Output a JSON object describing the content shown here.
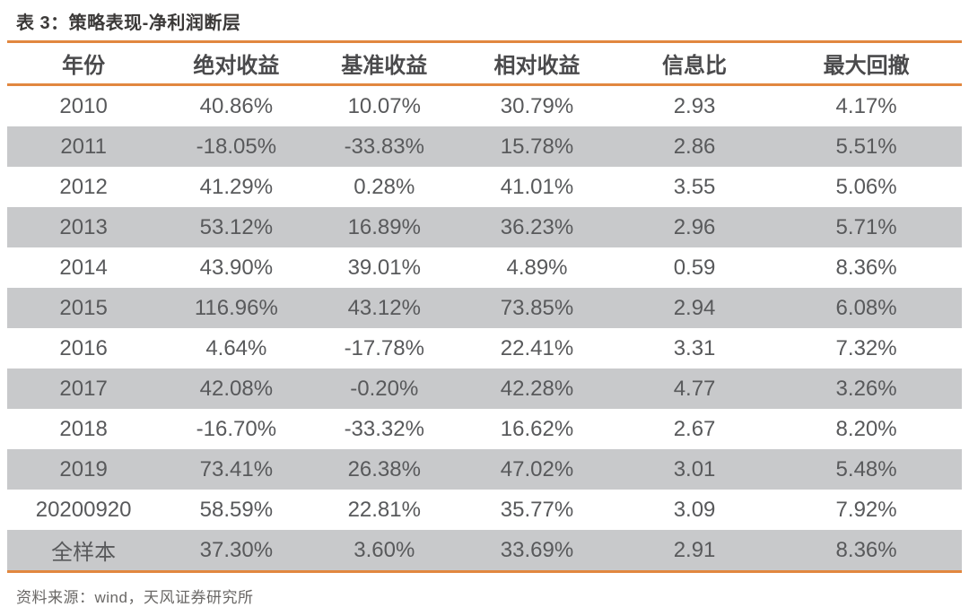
{
  "title": "表 3：策略表现-净利润断层",
  "source_note": "资料来源：wind，天风证券研究所",
  "colors": {
    "accent": "#E1873F",
    "stripe": "#C8C9CB",
    "text": "#58595B",
    "title_text": "#3B3938"
  },
  "table": {
    "columns": [
      "年份",
      "绝对收益",
      "基准收益",
      "相对收益",
      "信息比",
      "最大回撤"
    ],
    "rows": [
      [
        "2010",
        "40.86%",
        "10.07%",
        "30.79%",
        "2.93",
        "4.17%"
      ],
      [
        "2011",
        "-18.05%",
        "-33.83%",
        "15.78%",
        "2.86",
        "5.51%"
      ],
      [
        "2012",
        "41.29%",
        "0.28%",
        "41.01%",
        "3.55",
        "5.06%"
      ],
      [
        "2013",
        "53.12%",
        "16.89%",
        "36.23%",
        "2.96",
        "5.71%"
      ],
      [
        "2014",
        "43.90%",
        "39.01%",
        "4.89%",
        "0.59",
        "8.36%"
      ],
      [
        "2015",
        "116.96%",
        "43.12%",
        "73.85%",
        "2.94",
        "6.08%"
      ],
      [
        "2016",
        "4.64%",
        "-17.78%",
        "22.41%",
        "3.31",
        "7.32%"
      ],
      [
        "2017",
        "42.08%",
        "-0.20%",
        "42.28%",
        "4.77",
        "3.26%"
      ],
      [
        "2018",
        "-16.70%",
        "-33.32%",
        "16.62%",
        "2.67",
        "8.20%"
      ],
      [
        "2019",
        "73.41%",
        "26.38%",
        "47.02%",
        "3.01",
        "5.48%"
      ],
      [
        "20200920",
        "58.59%",
        "22.81%",
        "35.77%",
        "3.09",
        "7.92%"
      ],
      [
        "全样本",
        "37.30%",
        "3.60%",
        "33.69%",
        "2.91",
        "8.36%"
      ]
    ]
  }
}
